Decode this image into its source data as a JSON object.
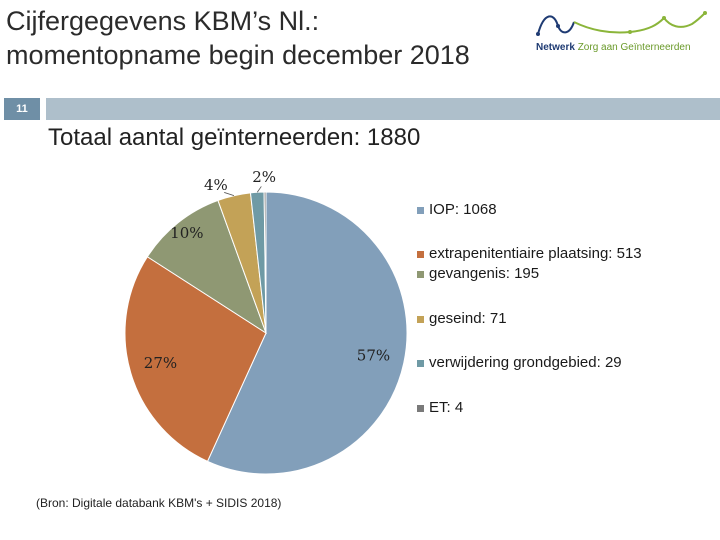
{
  "slide": {
    "title_line1": "Cijfergegevens KBM’s Nl.:",
    "title_line2": "momentopname begin december 2018",
    "number": "11",
    "logo_net": "Netwerk",
    "logo_rest": "Zorg aan Geïnterneerden",
    "source": "(Bron: Digitale databank KBM's + SIDIS 2018)"
  },
  "colors": {
    "header_bar": "#aebfcb",
    "number_box": "#6f8fa6",
    "series": [
      "#829fba",
      "#c46f3e",
      "#8f9873",
      "#c3a257",
      "#6f9aa5",
      "#7a7a7a"
    ]
  },
  "chart_data": {
    "type": "pie",
    "title": "Totaal aantal geïnterneerden: 1880",
    "total": 1880,
    "slices": [
      {
        "label": "IOP: 1068",
        "value": 1068,
        "pct_label": "57%"
      },
      {
        "label": "extrapenitentiaire plaatsing: 513",
        "value": 513,
        "pct_label": "27%"
      },
      {
        "label": "gevangenis: 195",
        "value": 195,
        "pct_label": "10%"
      },
      {
        "label": "geseind: 71",
        "value": 71,
        "pct_label": "4%"
      },
      {
        "label": "verwijdering grondgebied: 29",
        "value": 29,
        "pct_label": "2%"
      },
      {
        "label": "ET: 4",
        "value": 4,
        "pct_label": ""
      }
    ],
    "legend_position": "right"
  }
}
